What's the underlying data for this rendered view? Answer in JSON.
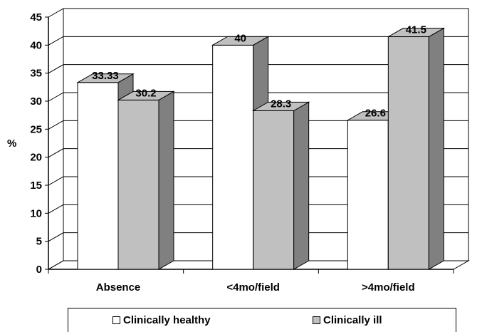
{
  "chart_data": {
    "type": "bar",
    "categories": [
      "Absence",
      "<4mo/field",
      ">4mo/field"
    ],
    "series": [
      {
        "name": "Clinically healthy",
        "values": [
          33.33,
          40,
          26.6
        ],
        "labels": [
          "33.33",
          "40",
          "26.6"
        ],
        "color": "#ffffff"
      },
      {
        "name": "Clinically ill",
        "values": [
          30.2,
          28.3,
          41.5
        ],
        "labels": [
          "30.2",
          "28.3",
          "41.5"
        ],
        "color": "#c0c0c0"
      }
    ],
    "ylabel": "%",
    "xlabel": "",
    "title": "",
    "ylim": [
      0,
      45
    ],
    "yticks": [
      0,
      5,
      10,
      15,
      20,
      25,
      30,
      35,
      40,
      45
    ],
    "grid": true,
    "legend_position": "bottom",
    "style": "3d-clustered-column",
    "colors": {
      "wall": "#ffffff",
      "side": "#808080",
      "top": "#c0c0c0",
      "outline": "#000000"
    }
  }
}
